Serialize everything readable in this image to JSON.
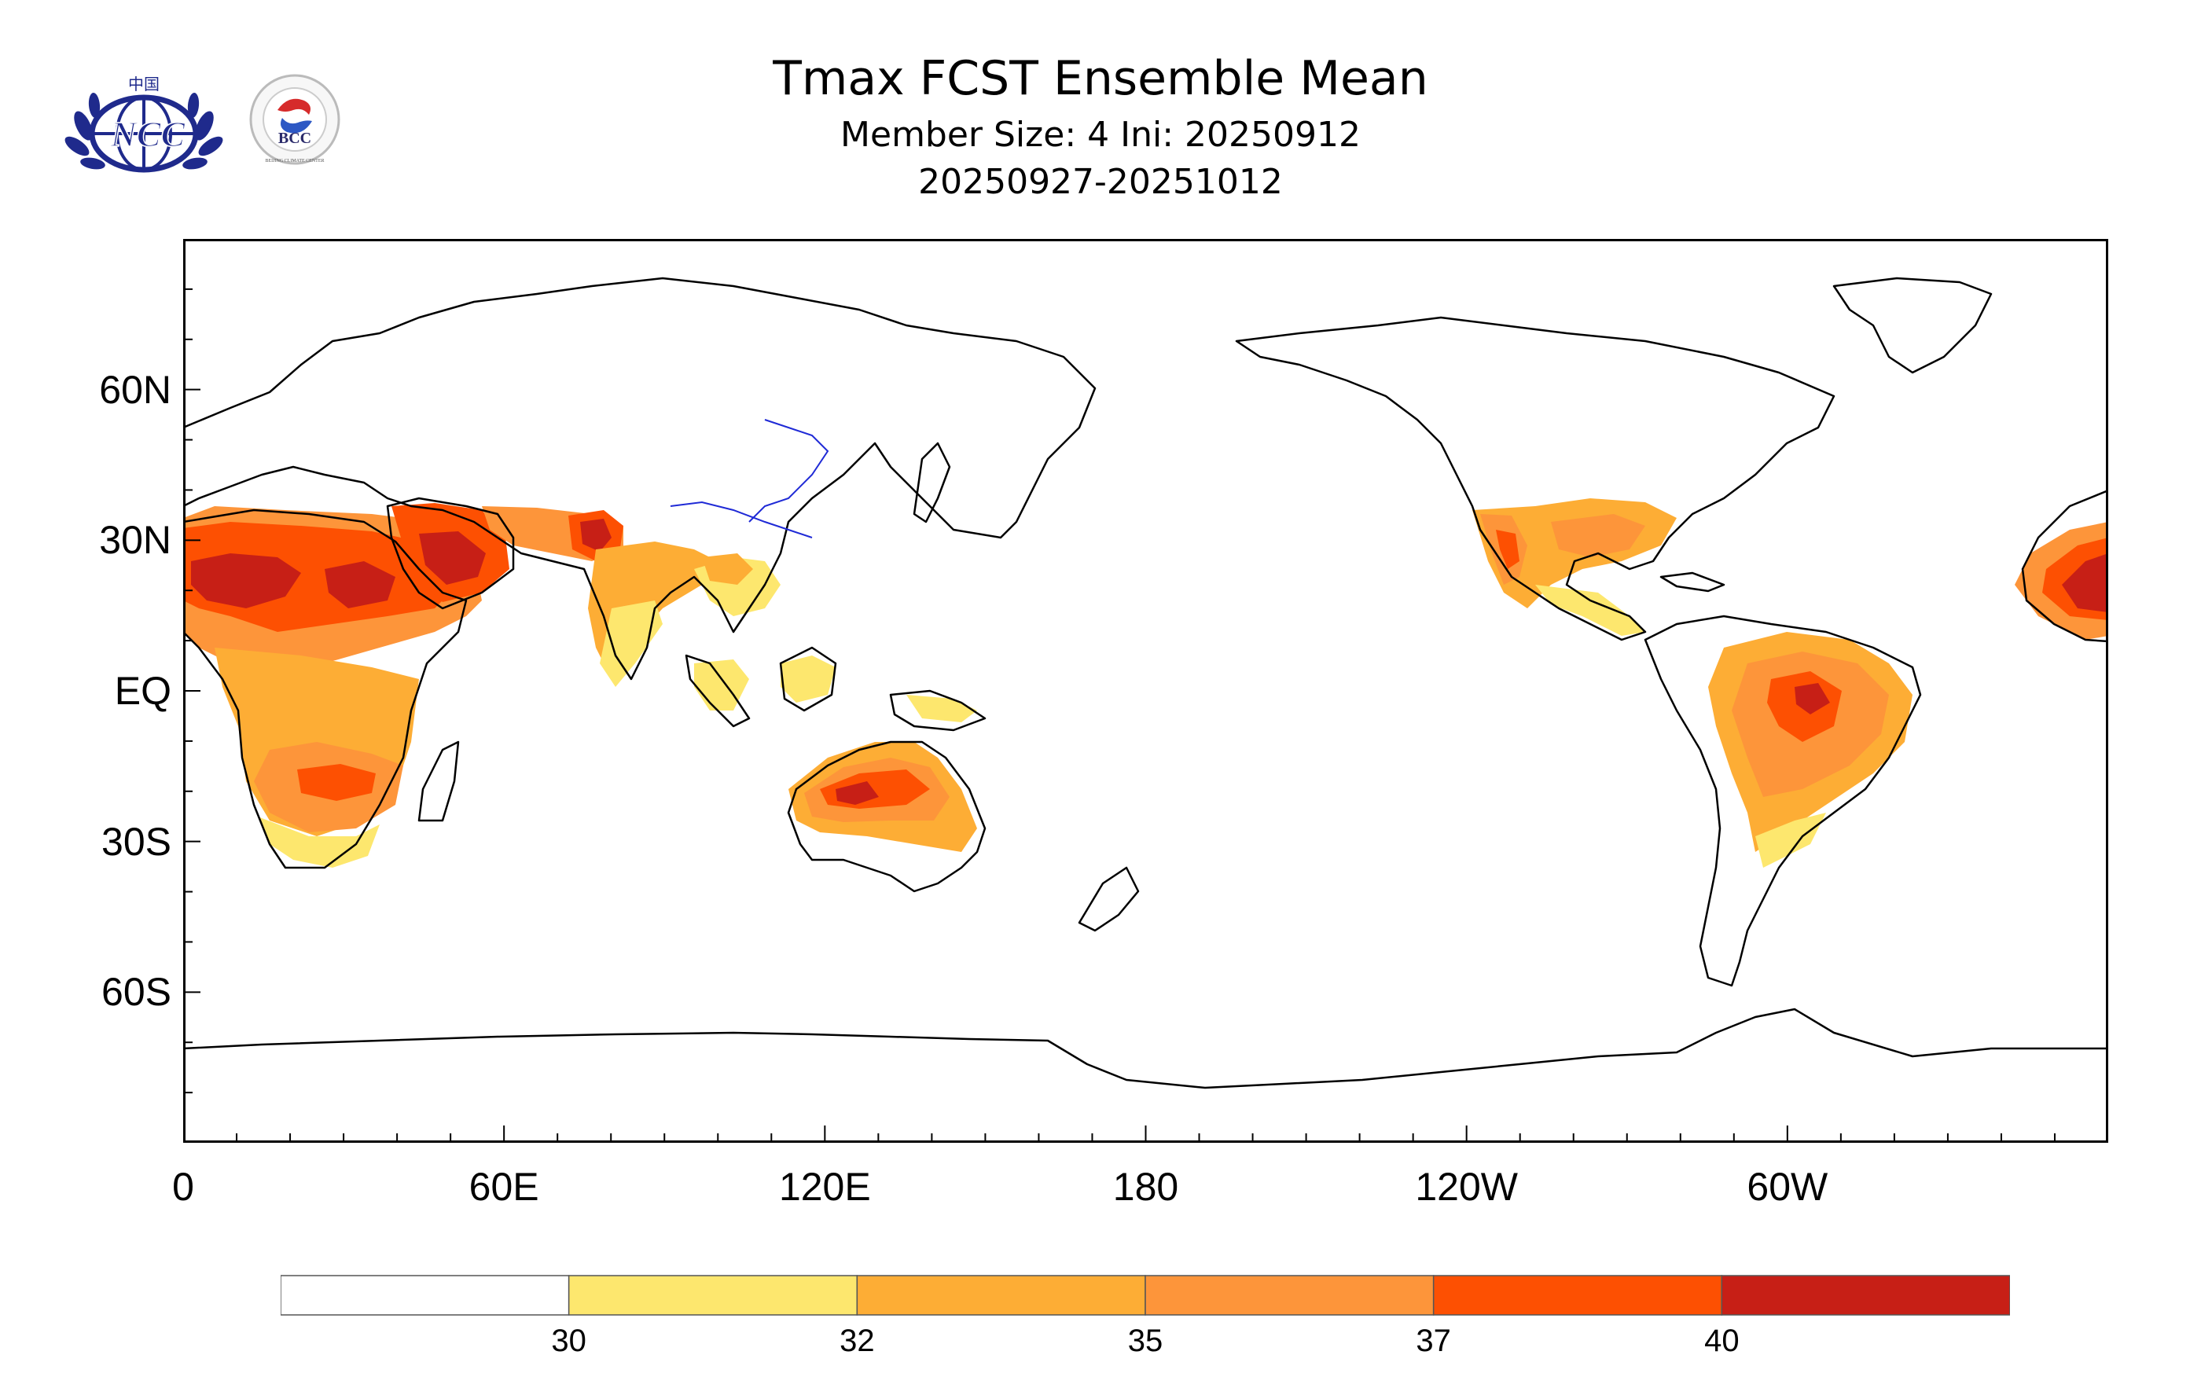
{
  "title": {
    "main": "Tmax FCST Ensemble Mean",
    "line2": "Member Size: 4  Ini: 20250912",
    "line3": "20250927-20251012"
  },
  "logos": [
    {
      "name": "ncc-logo",
      "text": "NCC",
      "top_text": "中国"
    },
    {
      "name": "bcc-logo",
      "text": "BCC",
      "ring_text": "BEIJING CLIMATE CENTER"
    }
  ],
  "map": {
    "lat_labels": [
      "60N",
      "30N",
      "EQ",
      "30S",
      "60S"
    ],
    "lat_values": [
      60,
      30,
      0,
      -30,
      -60
    ],
    "lon_labels": [
      "0",
      "60E",
      "120E",
      "180",
      "120W",
      "60W"
    ],
    "lon_values": [
      0,
      60,
      120,
      180,
      240,
      300
    ],
    "lon_range": [
      0,
      360
    ],
    "lat_range": [
      -90,
      90
    ]
  },
  "colorbar": {
    "levels": [
      "30",
      "32",
      "35",
      "37",
      "40"
    ],
    "colors": [
      "#ffffff",
      "#fde76e",
      "#fdad35",
      "#fd953a",
      "#fd5002",
      "#c71f16"
    ]
  }
}
